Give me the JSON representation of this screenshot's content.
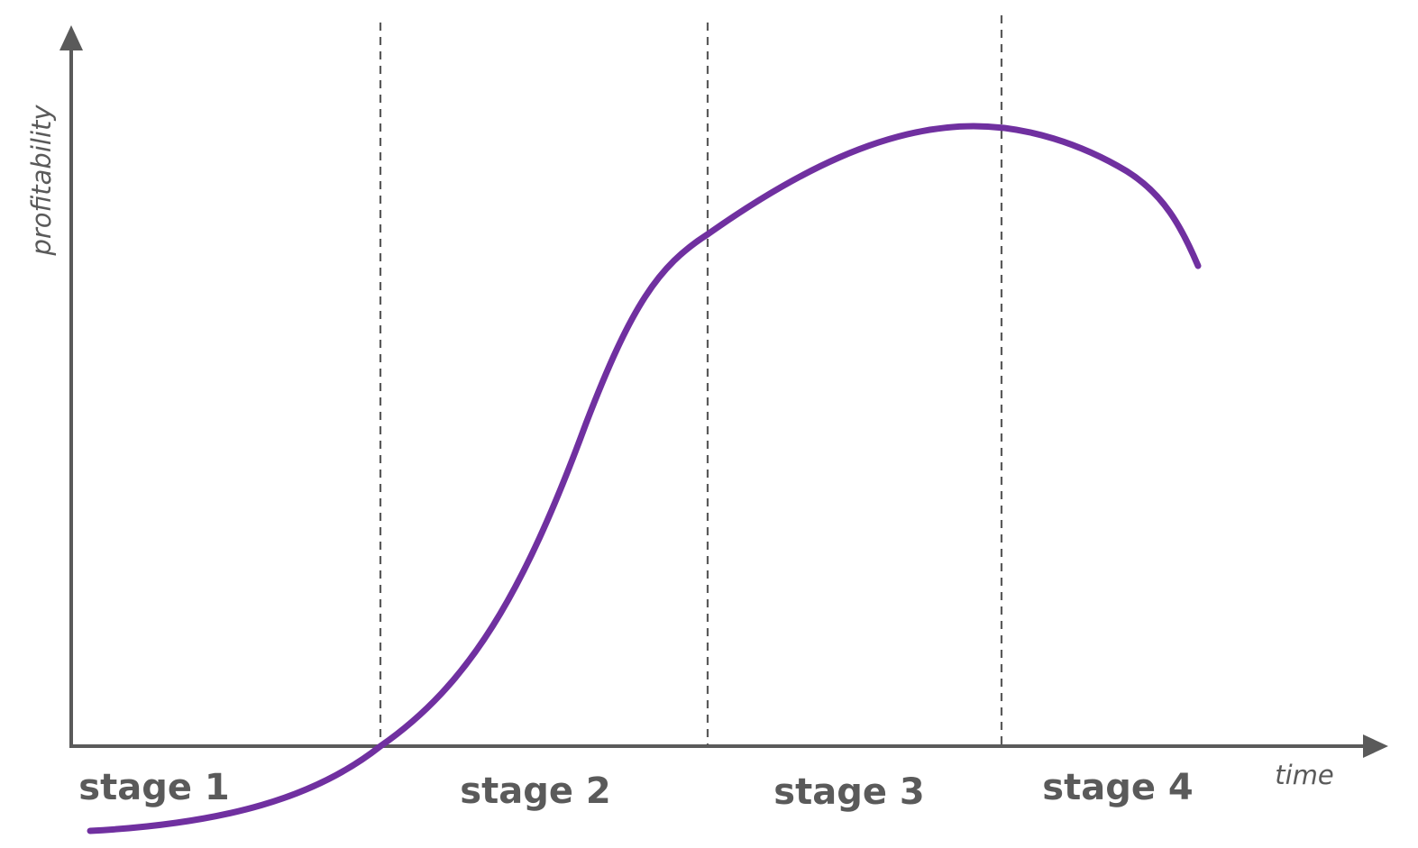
{
  "axes": {
    "x_label": "time",
    "y_label": "profitability"
  },
  "stages": [
    {
      "label": "stage 1"
    },
    {
      "label": "stage 2"
    },
    {
      "label": "stage 3"
    },
    {
      "label": "stage 4"
    }
  ],
  "colors": {
    "axis": "#5a5a5a",
    "curve": "#7030a0",
    "background": "#ffffff"
  }
}
